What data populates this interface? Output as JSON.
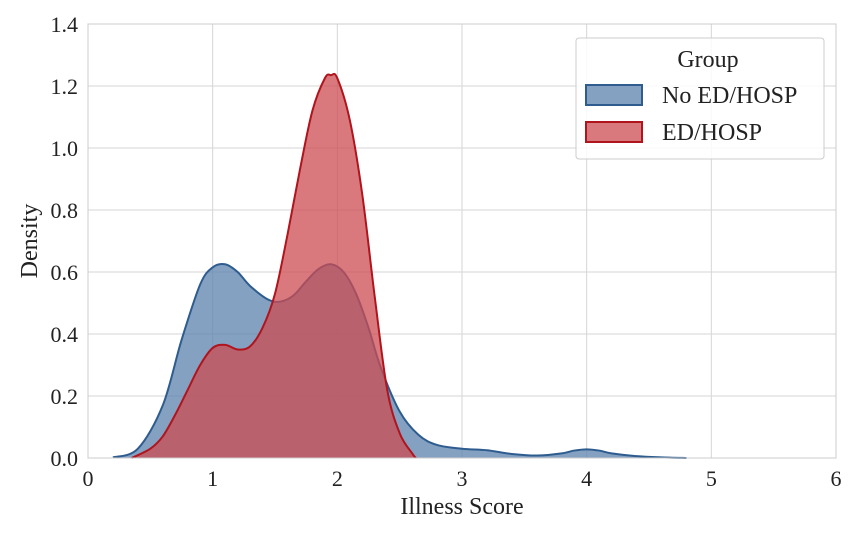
{
  "chart_data": {
    "type": "area",
    "title": "",
    "xlabel": "Illness Score",
    "ylabel": "Density",
    "xlim": [
      0,
      6
    ],
    "ylim": [
      0,
      1.4
    ],
    "xticks": [
      0,
      1,
      2,
      3,
      4,
      5,
      6
    ],
    "yticks": [
      0.0,
      0.2,
      0.4,
      0.6,
      0.8,
      1.0,
      1.2,
      1.4
    ],
    "xtick_labels": [
      "0",
      "1",
      "2",
      "3",
      "4",
      "5",
      "6"
    ],
    "ytick_labels": [
      "0.0",
      "0.2",
      "0.4",
      "0.6",
      "0.8",
      "1.0",
      "1.2",
      "1.4"
    ],
    "grid": true,
    "legend": {
      "title": "Group",
      "placement": "top-right"
    },
    "series": [
      {
        "name": "No ED/HOSP",
        "fill": "#5b82ad",
        "line": "#2e5c8e",
        "fill_opacity": 0.75,
        "x": [
          0.2,
          0.4,
          0.6,
          0.75,
          0.9,
          1.0,
          1.1,
          1.2,
          1.3,
          1.45,
          1.55,
          1.65,
          1.75,
          1.85,
          1.95,
          2.05,
          2.15,
          2.25,
          2.35,
          2.5,
          2.65,
          2.8,
          3.0,
          3.2,
          3.4,
          3.6,
          3.8,
          3.9,
          4.0,
          4.1,
          4.2,
          4.4,
          4.6,
          4.8
        ],
        "y": [
          0.002,
          0.03,
          0.17,
          0.38,
          0.56,
          0.615,
          0.625,
          0.6,
          0.555,
          0.51,
          0.505,
          0.525,
          0.57,
          0.61,
          0.625,
          0.6,
          0.53,
          0.42,
          0.29,
          0.15,
          0.075,
          0.042,
          0.03,
          0.025,
          0.013,
          0.008,
          0.015,
          0.024,
          0.028,
          0.024,
          0.015,
          0.006,
          0.002,
          0.0
        ]
      },
      {
        "name": "ED/HOSP",
        "fill": "#cc4c52",
        "line": "#b0141c",
        "fill_opacity": 0.75,
        "x": [
          0.35,
          0.5,
          0.6,
          0.7,
          0.8,
          0.9,
          1.0,
          1.1,
          1.2,
          1.3,
          1.4,
          1.5,
          1.6,
          1.7,
          1.8,
          1.9,
          1.95,
          2.0,
          2.1,
          2.2,
          2.3,
          2.4,
          2.5,
          2.6,
          2.63
        ],
        "y": [
          0.0,
          0.03,
          0.07,
          0.14,
          0.22,
          0.3,
          0.355,
          0.365,
          0.35,
          0.36,
          0.42,
          0.53,
          0.72,
          0.93,
          1.12,
          1.225,
          1.235,
          1.225,
          1.09,
          0.85,
          0.52,
          0.22,
          0.08,
          0.015,
          0.0
        ]
      }
    ]
  }
}
